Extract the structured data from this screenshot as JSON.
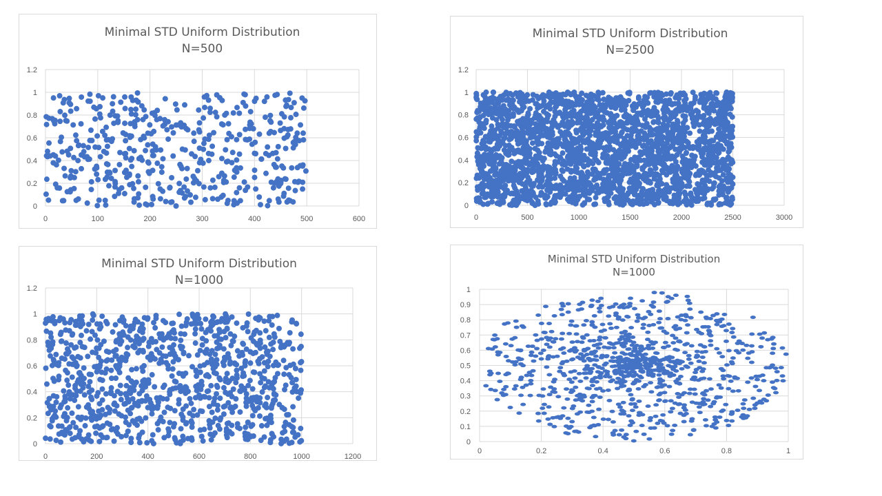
{
  "colors": {
    "marker": "#4472c4",
    "grid": "#d9d9d9",
    "text": "#595959"
  },
  "chart_data": [
    {
      "type": "scatter",
      "title": "Minimal STD Uniform Distribution",
      "subtitle": "N=500",
      "xlabel": "",
      "ylabel": "",
      "xlim": [
        0,
        600
      ],
      "ylim": [
        0,
        1.2
      ],
      "xticks": [
        "0",
        "100",
        "200",
        "300",
        "400",
        "500",
        "600"
      ],
      "yticks": [
        "0",
        "0.2",
        "0.4",
        "0.6",
        "0.8",
        "1",
        "1.2"
      ],
      "grid": true,
      "point_count": 500,
      "x_range": [
        0,
        500
      ],
      "y_range": [
        0,
        1
      ],
      "distribution": "uniform"
    },
    {
      "type": "scatter",
      "title": "Minimal STD Uniform Distribution",
      "subtitle": "N=2500",
      "xlabel": "",
      "ylabel": "",
      "xlim": [
        0,
        3000
      ],
      "ylim": [
        0,
        1.2
      ],
      "xticks": [
        "0",
        "500",
        "1000",
        "1500",
        "2000",
        "2500",
        "3000"
      ],
      "yticks": [
        "0",
        "0.2",
        "0.4",
        "0.6",
        "0.8",
        "1",
        "1.2"
      ],
      "grid": true,
      "point_count": 2500,
      "x_range": [
        0,
        2500
      ],
      "y_range": [
        0,
        1
      ],
      "distribution": "uniform"
    },
    {
      "type": "scatter",
      "title": "Minimal STD Uniform Distribution",
      "subtitle": "N=1000",
      "xlabel": "",
      "ylabel": "",
      "xlim": [
        0,
        1200
      ],
      "ylim": [
        0,
        1.2
      ],
      "xticks": [
        "0",
        "200",
        "400",
        "600",
        "800",
        "1000",
        "1200"
      ],
      "yticks": [
        "0",
        "0.2",
        "0.4",
        "0.6",
        "0.8",
        "1",
        "1.2"
      ],
      "grid": true,
      "point_count": 1000,
      "x_range": [
        0,
        1000
      ],
      "y_range": [
        0,
        1
      ],
      "distribution": "uniform"
    },
    {
      "type": "scatter",
      "title": "Minimal STD Uniform Distribution",
      "subtitle": "N=1000",
      "xlabel": "",
      "ylabel": "",
      "xlim": [
        0,
        1
      ],
      "ylim": [
        0,
        1
      ],
      "xticks": [
        "0",
        "0.2",
        "0.4",
        "0.6",
        "0.8",
        "1"
      ],
      "yticks": [
        "0",
        "0.1",
        "0.2",
        "0.3",
        "0.4",
        "0.5",
        "0.6",
        "0.7",
        "0.8",
        "0.9",
        "1"
      ],
      "grid": true,
      "point_count": 1000,
      "center": [
        0.5,
        0.5
      ],
      "radius": 0.5,
      "distribution": "disk, concentrated near center"
    }
  ]
}
